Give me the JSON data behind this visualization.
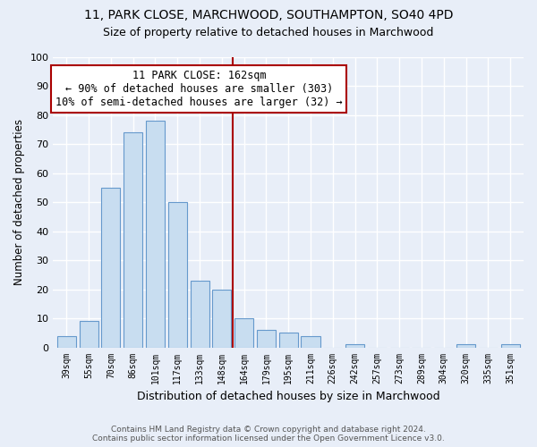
{
  "title": "11, PARK CLOSE, MARCHWOOD, SOUTHAMPTON, SO40 4PD",
  "subtitle": "Size of property relative to detached houses in Marchwood",
  "xlabel": "Distribution of detached houses by size in Marchwood",
  "ylabel": "Number of detached properties",
  "bar_labels": [
    "39sqm",
    "55sqm",
    "70sqm",
    "86sqm",
    "101sqm",
    "117sqm",
    "133sqm",
    "148sqm",
    "164sqm",
    "179sqm",
    "195sqm",
    "211sqm",
    "226sqm",
    "242sqm",
    "257sqm",
    "273sqm",
    "289sqm",
    "304sqm",
    "320sqm",
    "335sqm",
    "351sqm"
  ],
  "bar_values": [
    4,
    9,
    55,
    74,
    78,
    50,
    23,
    20,
    10,
    6,
    5,
    4,
    0,
    1,
    0,
    0,
    0,
    0,
    1,
    0,
    1
  ],
  "bar_color": "#c8ddf0",
  "bar_edge_color": "#6699cc",
  "vline_index": 8,
  "vline_color": "#aa0000",
  "annotation_title": "11 PARK CLOSE: 162sqm",
  "annotation_line1": "← 90% of detached houses are smaller (303)",
  "annotation_line2": "10% of semi-detached houses are larger (32) →",
  "annotation_box_facecolor": "#ffffff",
  "annotation_box_edgecolor": "#aa0000",
  "ylim": [
    0,
    100
  ],
  "yticks": [
    0,
    10,
    20,
    30,
    40,
    50,
    60,
    70,
    80,
    90,
    100
  ],
  "bg_color": "#e8eef8",
  "grid_color": "#ffffff",
  "title_fontsize": 10,
  "subtitle_fontsize": 9,
  "footer_line1": "Contains HM Land Registry data © Crown copyright and database right 2024.",
  "footer_line2": "Contains public sector information licensed under the Open Government Licence v3.0."
}
